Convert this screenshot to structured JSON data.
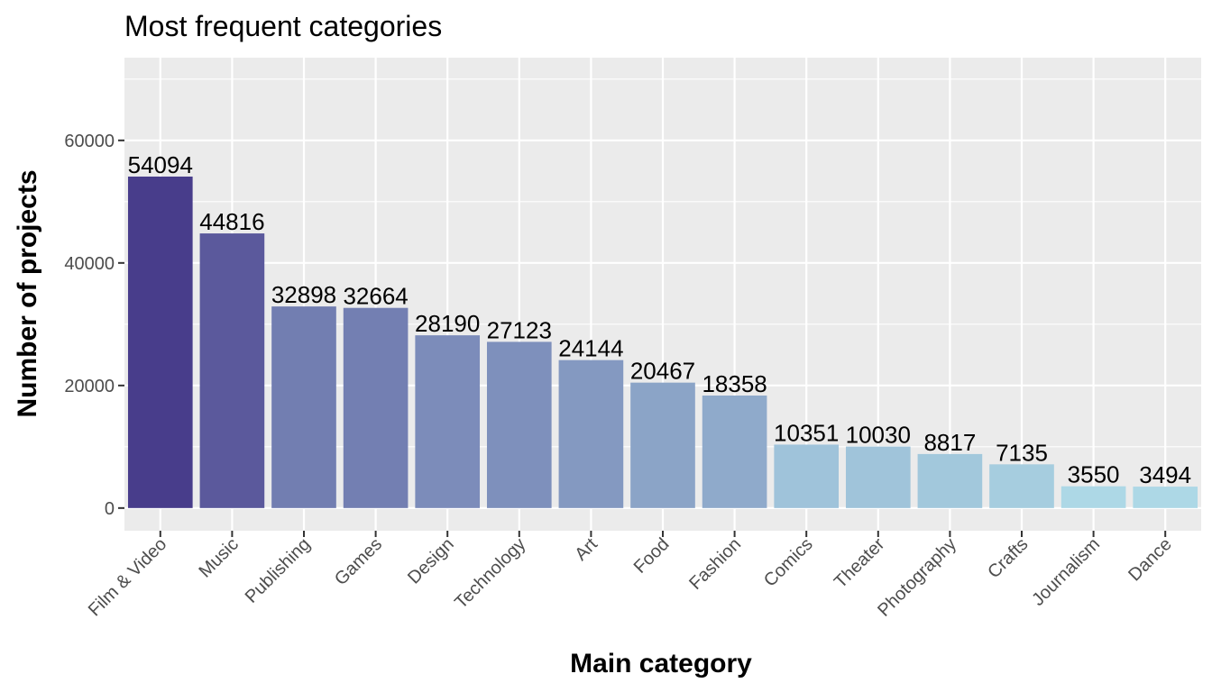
{
  "chart_data": {
    "type": "bar",
    "title": "Most frequent categories",
    "xlabel": "Main category",
    "ylabel": "Number of projects",
    "categories": [
      "Film & Video",
      "Music",
      "Publishing",
      "Games",
      "Design",
      "Technology",
      "Art",
      "Food",
      "Fashion",
      "Comics",
      "Theater",
      "Photography",
      "Crafts",
      "Journalism",
      "Dance"
    ],
    "values": [
      54094,
      44816,
      32898,
      32664,
      28190,
      27123,
      24144,
      20467,
      18358,
      10351,
      10030,
      8817,
      7135,
      3550,
      3494
    ],
    "ylim": [
      -3700,
      73500
    ],
    "yticks": [
      0,
      20000,
      40000,
      60000
    ],
    "grid": true,
    "legend": "none",
    "colors": {
      "panel": "#ebebeb",
      "grid_major": "#ffffff",
      "high": "#483d8b",
      "low": "#add8e6"
    }
  }
}
